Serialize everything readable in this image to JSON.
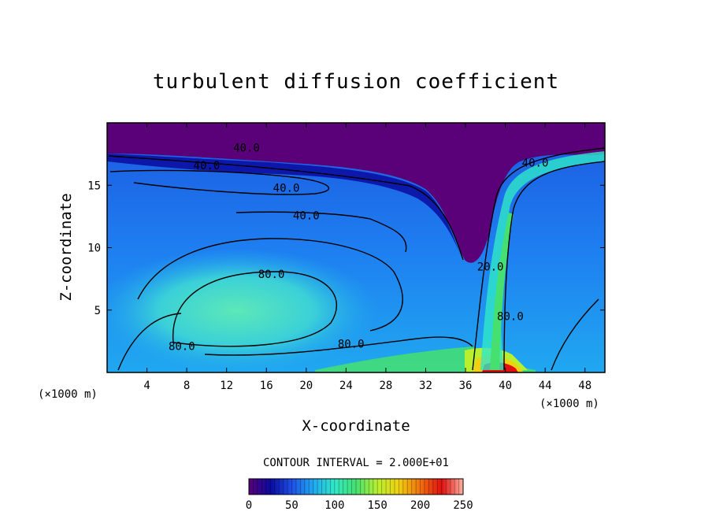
{
  "chart_data": {
    "type": "heatmap",
    "title": "turbulent diffusion coefficient",
    "xlabel": "X-coordinate",
    "ylabel": "Z-coordinate",
    "x_unit_left": "(×1000 m)",
    "x_unit_right": "(×1000 m)",
    "xlim": [
      0,
      50
    ],
    "ylim": [
      0,
      20
    ],
    "xticks": [
      4,
      8,
      12,
      16,
      20,
      24,
      28,
      32,
      36,
      40,
      44,
      48
    ],
    "yticks": [
      5,
      10,
      15
    ],
    "contour_interval_text": "CONTOUR INTERVAL = 2.000E+01",
    "contour_interval": 20,
    "contour_labels": [
      {
        "text": "40.0",
        "x": 14,
        "z": 18.0
      },
      {
        "text": "40.0",
        "x": 10,
        "z": 16.6
      },
      {
        "text": "40.0",
        "x": 18,
        "z": 14.8
      },
      {
        "text": "40.0",
        "x": 20,
        "z": 12.6
      },
      {
        "text": "40.0",
        "x": 43,
        "z": 16.8
      },
      {
        "text": "80.0",
        "x": 16.5,
        "z": 7.9
      },
      {
        "text": "80.0",
        "x": 7.5,
        "z": 2.1
      },
      {
        "text": "80.0",
        "x": 24.5,
        "z": 2.3
      },
      {
        "text": "80.0",
        "x": 40.5,
        "z": 4.5
      },
      {
        "text": "20.0",
        "x": 38.5,
        "z": 8.5
      }
    ],
    "colorbar": {
      "ticks": [
        0,
        50,
        100,
        150,
        200,
        250
      ],
      "range": [
        0,
        250
      ],
      "colors": [
        "#5a0078",
        "#0a0aa0",
        "#1e50e6",
        "#20a8f0",
        "#30e8c8",
        "#46e070",
        "#b8f030",
        "#f0d010",
        "#f07010",
        "#e01010",
        "#ffb0a0"
      ]
    }
  }
}
